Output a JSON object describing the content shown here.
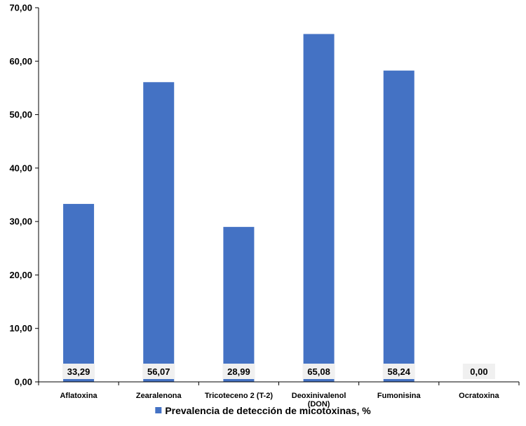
{
  "chart_data": {
    "type": "bar",
    "categories": [
      [
        "Aflatoxina"
      ],
      [
        "Zearalenona"
      ],
      [
        "Tricoteceno 2 (T-2)"
      ],
      [
        "Deoxinivalenol",
        "(DON)"
      ],
      [
        "Fumonisina"
      ],
      [
        "Ocratoxina"
      ]
    ],
    "series": [
      {
        "name": "Prevalencia de detección de micotoxinas, %",
        "values": [
          33.29,
          56.07,
          28.99,
          65.08,
          58.24,
          0.0
        ],
        "labels": [
          "33,29",
          "56,07",
          "28,99",
          "65,08",
          "58,24",
          "0,00"
        ],
        "color": "#4472C4"
      }
    ],
    "ylim": [
      0,
      70
    ],
    "yticks": [
      0,
      10,
      20,
      30,
      40,
      50,
      60,
      70
    ],
    "ytick_labels": [
      "0,00",
      "10,00",
      "20,00",
      "30,00",
      "40,00",
      "50,00",
      "60,00",
      "70,00"
    ],
    "grid": false,
    "legend_position": "bottom",
    "title": "",
    "xlabel": "",
    "ylabel": ""
  },
  "colors": {
    "bar": "#4472C4",
    "axis": "#000000",
    "label_bg": "#F0F0F0",
    "text": "#000000"
  }
}
